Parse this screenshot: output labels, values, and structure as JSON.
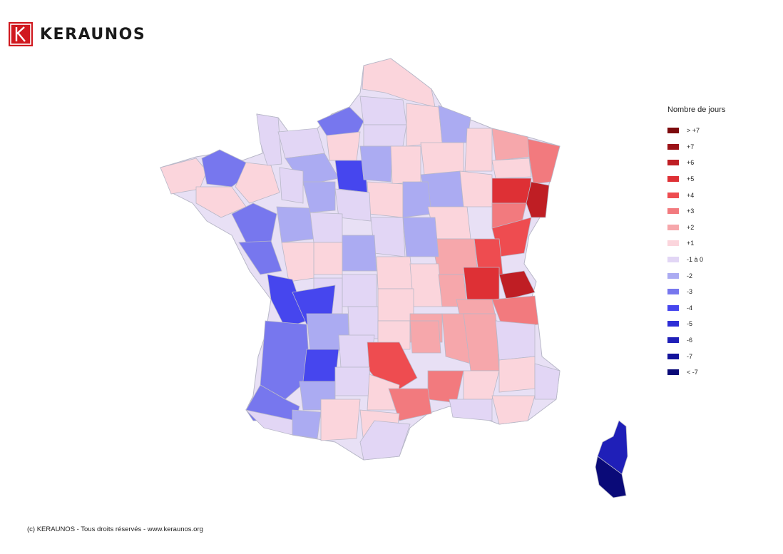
{
  "brand": {
    "name": "KERAUNOS",
    "color": "#d0191f"
  },
  "legend": {
    "title": "Nombre de jours",
    "items": [
      {
        "label": "> +7",
        "color": "#7d0a0d"
      },
      {
        "label": "+7",
        "color": "#9b1217"
      },
      {
        "label": "+6",
        "color": "#bf1e24"
      },
      {
        "label": "+5",
        "color": "#de3035"
      },
      {
        "label": "+4",
        "color": "#ee4c50"
      },
      {
        "label": "+3",
        "color": "#f27a7e"
      },
      {
        "label": "+2",
        "color": "#f6a7ab"
      },
      {
        "label": "+1",
        "color": "#fbd5dc"
      },
      {
        "label": "-1 à 0",
        "color": "#e2d6f5"
      },
      {
        "label": "-2",
        "color": "#ababf2"
      },
      {
        "label": "-3",
        "color": "#7777ee"
      },
      {
        "label": "-4",
        "color": "#4646ee"
      },
      {
        "label": "-5",
        "color": "#2e2ed6"
      },
      {
        "label": "-6",
        "color": "#1f1fb8"
      },
      {
        "label": "-7",
        "color": "#13139b"
      },
      {
        "label": "< -7",
        "color": "#0a0a78"
      }
    ]
  },
  "footer": "(c) KERAUNOS - Tous droits réservés - www.keraunos.org"
}
